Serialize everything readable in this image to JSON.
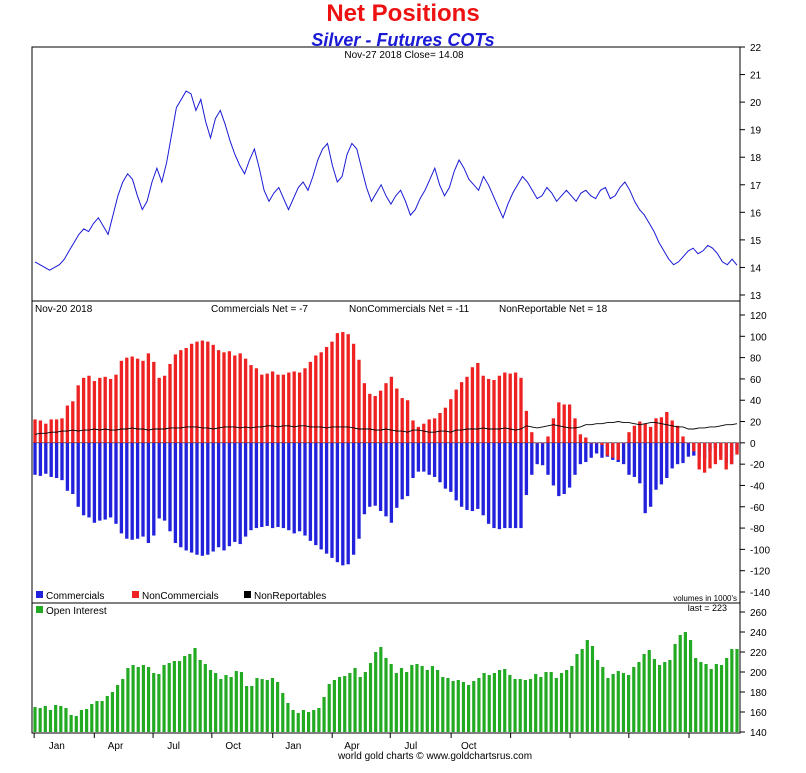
{
  "title": "Net Positions",
  "subtitle": "Silver - Futures COTs",
  "footer": "world gold charts © www.goldchartsrus.com",
  "colors": {
    "price": "#1a1ad6",
    "commercials": "#2222dd",
    "noncommercials": "#ee2222",
    "nonreportables": "#000000",
    "open_interest": "#22aa22"
  },
  "chart_data": [
    {
      "type": "line",
      "header": "Nov-27  2018   Close= 14.08",
      "series": [
        {
          "name": "Silver",
          "values": [
            14.2,
            14.1,
            14.0,
            13.9,
            14.0,
            14.1,
            14.3,
            14.6,
            14.9,
            15.2,
            15.4,
            15.3,
            15.6,
            15.8,
            15.5,
            15.2,
            15.9,
            16.6,
            17.1,
            17.4,
            17.2,
            16.6,
            16.1,
            16.4,
            17.1,
            17.6,
            17.1,
            17.8,
            18.8,
            19.8,
            20.1,
            20.4,
            20.3,
            19.7,
            20.1,
            19.3,
            18.7,
            19.4,
            19.7,
            19.2,
            18.6,
            18.1,
            17.7,
            17.4,
            17.9,
            18.3,
            17.6,
            16.8,
            16.4,
            16.7,
            16.9,
            16.5,
            16.1,
            16.5,
            16.9,
            17.1,
            16.8,
            17.3,
            17.9,
            18.3,
            18.5,
            17.7,
            17.1,
            17.3,
            18.1,
            18.5,
            18.3,
            17.6,
            16.9,
            16.4,
            16.7,
            17.0,
            16.6,
            16.3,
            16.6,
            16.8,
            16.4,
            15.9,
            16.1,
            16.5,
            16.8,
            17.2,
            17.6,
            17.0,
            16.6,
            16.9,
            17.5,
            17.9,
            17.6,
            17.2,
            17.0,
            16.8,
            17.3,
            17.0,
            16.6,
            16.2,
            15.8,
            16.3,
            16.7,
            17.0,
            17.3,
            17.1,
            16.8,
            16.5,
            16.6,
            16.9,
            16.7,
            16.4,
            16.6,
            16.8,
            16.6,
            16.4,
            16.7,
            16.8,
            16.6,
            16.5,
            16.8,
            16.9,
            16.5,
            16.6,
            16.9,
            17.1,
            16.8,
            16.4,
            16.1,
            15.9,
            15.6,
            15.3,
            14.9,
            14.6,
            14.3,
            14.1,
            14.2,
            14.4,
            14.6,
            14.7,
            14.5,
            14.6,
            14.8,
            14.7,
            14.5,
            14.2,
            14.1,
            14.3,
            14.08
          ]
        }
      ],
      "ylim": [
        13,
        22
      ],
      "ticks": [
        "13",
        "14",
        "15",
        "16",
        "17",
        "18",
        "19",
        "20",
        "21",
        "22"
      ]
    },
    {
      "type": "bar",
      "header": {
        "date": "Nov-20  2018",
        "commercials": "Commercials Net = -7",
        "noncommercials": "NonCommercials Net = -11",
        "nonreportable": "NonReportable Net = 18"
      },
      "ylim": [
        -140,
        120
      ],
      "ticks": [
        "-140",
        "-120",
        "-100",
        "-80",
        "-60",
        "-40",
        "-20",
        "0",
        "20",
        "40",
        "60",
        "80",
        "100",
        "120"
      ],
      "legend": [
        "Commercials",
        "NonCommercials",
        "NonReportables"
      ],
      "note": "volumes in 1000's",
      "series": [
        {
          "name": "Commercials",
          "values": [
            -30,
            -31,
            -29,
            -32,
            -33,
            -35,
            -45,
            -48,
            -60,
            -68,
            -70,
            -75,
            -73,
            -72,
            -70,
            -76,
            -85,
            -90,
            -91,
            -90,
            -88,
            -94,
            -87,
            -71,
            -73,
            -83,
            -94,
            -98,
            -101,
            -103,
            -105,
            -106,
            -105,
            -102,
            -98,
            -101,
            -97,
            -93,
            -95,
            -88,
            -82,
            -80,
            -79,
            -78,
            -80,
            -79,
            -80,
            -82,
            -85,
            -83,
            -87,
            -92,
            -96,
            -100,
            -104,
            -108,
            -112,
            -115,
            -114,
            -105,
            -90,
            -67,
            -60,
            -59,
            -64,
            -69,
            -75,
            -61,
            -53,
            -50,
            -33,
            -27,
            -27,
            -30,
            -32,
            -37,
            -43,
            -46,
            -54,
            -60,
            -63,
            -64,
            -62,
            -68,
            -76,
            -80,
            -81,
            -80,
            -80,
            -80,
            -80,
            -49,
            -30,
            -20,
            -21,
            -30,
            -40,
            -50,
            -48,
            -42,
            -30,
            -20,
            -18,
            -14,
            -10,
            -14,
            -13,
            -16,
            -18,
            -20,
            -30,
            -32,
            -38,
            -66,
            -60,
            -44,
            -39,
            -33,
            -24,
            -20,
            -19,
            -13,
            -12,
            -13,
            -15,
            -8,
            -5,
            -12,
            -19,
            -20,
            -7
          ]
        },
        {
          "name": "NonCommercials",
          "values": [
            22,
            21,
            18,
            22,
            22,
            23,
            35,
            39,
            54,
            61,
            63,
            58,
            61,
            62,
            60,
            64,
            77,
            80,
            81,
            79,
            77,
            84,
            76,
            61,
            63,
            74,
            83,
            87,
            89,
            93,
            95,
            96,
            95,
            92,
            87,
            85,
            86,
            82,
            84,
            79,
            73,
            70,
            64,
            65,
            67,
            64,
            64,
            66,
            67,
            66,
            70,
            76,
            82,
            85,
            90,
            95,
            103,
            104,
            102,
            93,
            78,
            56,
            46,
            44,
            49,
            56,
            62,
            51,
            42,
            40,
            21,
            15,
            18,
            22,
            23,
            28,
            33,
            41,
            50,
            57,
            62,
            71,
            75,
            63,
            60,
            59,
            63,
            66,
            65,
            66,
            61,
            30,
            10,
            0,
            0,
            6,
            23,
            38,
            36,
            36,
            23,
            8,
            5,
            0,
            0,
            -2,
            -12,
            -14,
            -16,
            0,
            10,
            16,
            20,
            18,
            15,
            23,
            24,
            29,
            21,
            16,
            6,
            0,
            -8,
            -25,
            -28,
            -24,
            -20,
            -16,
            -25,
            -20,
            -11
          ]
        },
        {
          "name": "NonReportables",
          "values": [
            8,
            9,
            9,
            10,
            10,
            11,
            11,
            12,
            11,
            12,
            12,
            13,
            12,
            13,
            12,
            12,
            13,
            13,
            14,
            13,
            13,
            12,
            13,
            13,
            13,
            14,
            14,
            14,
            15,
            15,
            15,
            14,
            14,
            13,
            14,
            15,
            15,
            15,
            14,
            15,
            14,
            15,
            15,
            16,
            16,
            15,
            16,
            16,
            15,
            16,
            16,
            15,
            15,
            15,
            14,
            15,
            15,
            15,
            15,
            14,
            13,
            13,
            13,
            12,
            12,
            13,
            12,
            11,
            11,
            10,
            12,
            12,
            11,
            10,
            10,
            11,
            11,
            10,
            12,
            12,
            13,
            13,
            13,
            14,
            13,
            13,
            13,
            14,
            13,
            12,
            13,
            16,
            15,
            14,
            15,
            16,
            17,
            16,
            15,
            14,
            14,
            15,
            17,
            17,
            18,
            18,
            19,
            19,
            20,
            19,
            19,
            18,
            17,
            18,
            19,
            19,
            18,
            17,
            16,
            15,
            15,
            13,
            13,
            14,
            14,
            15,
            15,
            16,
            17,
            17,
            18
          ]
        }
      ]
    },
    {
      "type": "bar",
      "series_label": "Open Interest",
      "note": "last = 223",
      "ylim": [
        140,
        260
      ],
      "ticks": [
        "140",
        "160",
        "180",
        "200",
        "220",
        "240",
        "260"
      ],
      "x_ticks": [
        "Jan",
        "Apr",
        "Jul",
        "Oct",
        "Jan",
        "Apr",
        "Jul",
        "Oct"
      ],
      "series": [
        {
          "name": "Open Interest",
          "values": [
            165,
            164,
            166,
            162,
            167,
            166,
            164,
            157,
            156,
            162,
            163,
            168,
            171,
            171,
            176,
            180,
            187,
            193,
            204,
            207,
            205,
            207,
            205,
            199,
            198,
            207,
            209,
            211,
            211,
            216,
            218,
            224,
            212,
            208,
            202,
            199,
            193,
            197,
            195,
            201,
            200,
            186,
            186,
            194,
            193,
            192,
            194,
            190,
            179,
            169,
            162,
            159,
            162,
            160,
            162,
            164,
            175,
            188,
            192,
            195,
            196,
            199,
            204,
            195,
            200,
            209,
            220,
            225,
            214,
            208,
            199,
            204,
            200,
            207,
            208,
            206,
            202,
            206,
            202,
            195,
            194,
            191,
            192,
            190,
            187,
            191,
            194,
            199,
            197,
            199,
            202,
            203,
            197,
            193,
            193,
            192,
            193,
            198,
            195,
            200,
            200,
            194,
            199,
            202,
            206,
            218,
            223,
            232,
            226,
            212,
            205,
            194,
            198,
            201,
            199,
            197,
            205,
            210,
            218,
            222,
            213,
            207,
            210,
            212,
            228,
            237,
            240,
            232,
            214,
            210,
            208,
            203,
            208,
            207,
            214,
            223,
            223
          ]
        }
      ]
    }
  ]
}
